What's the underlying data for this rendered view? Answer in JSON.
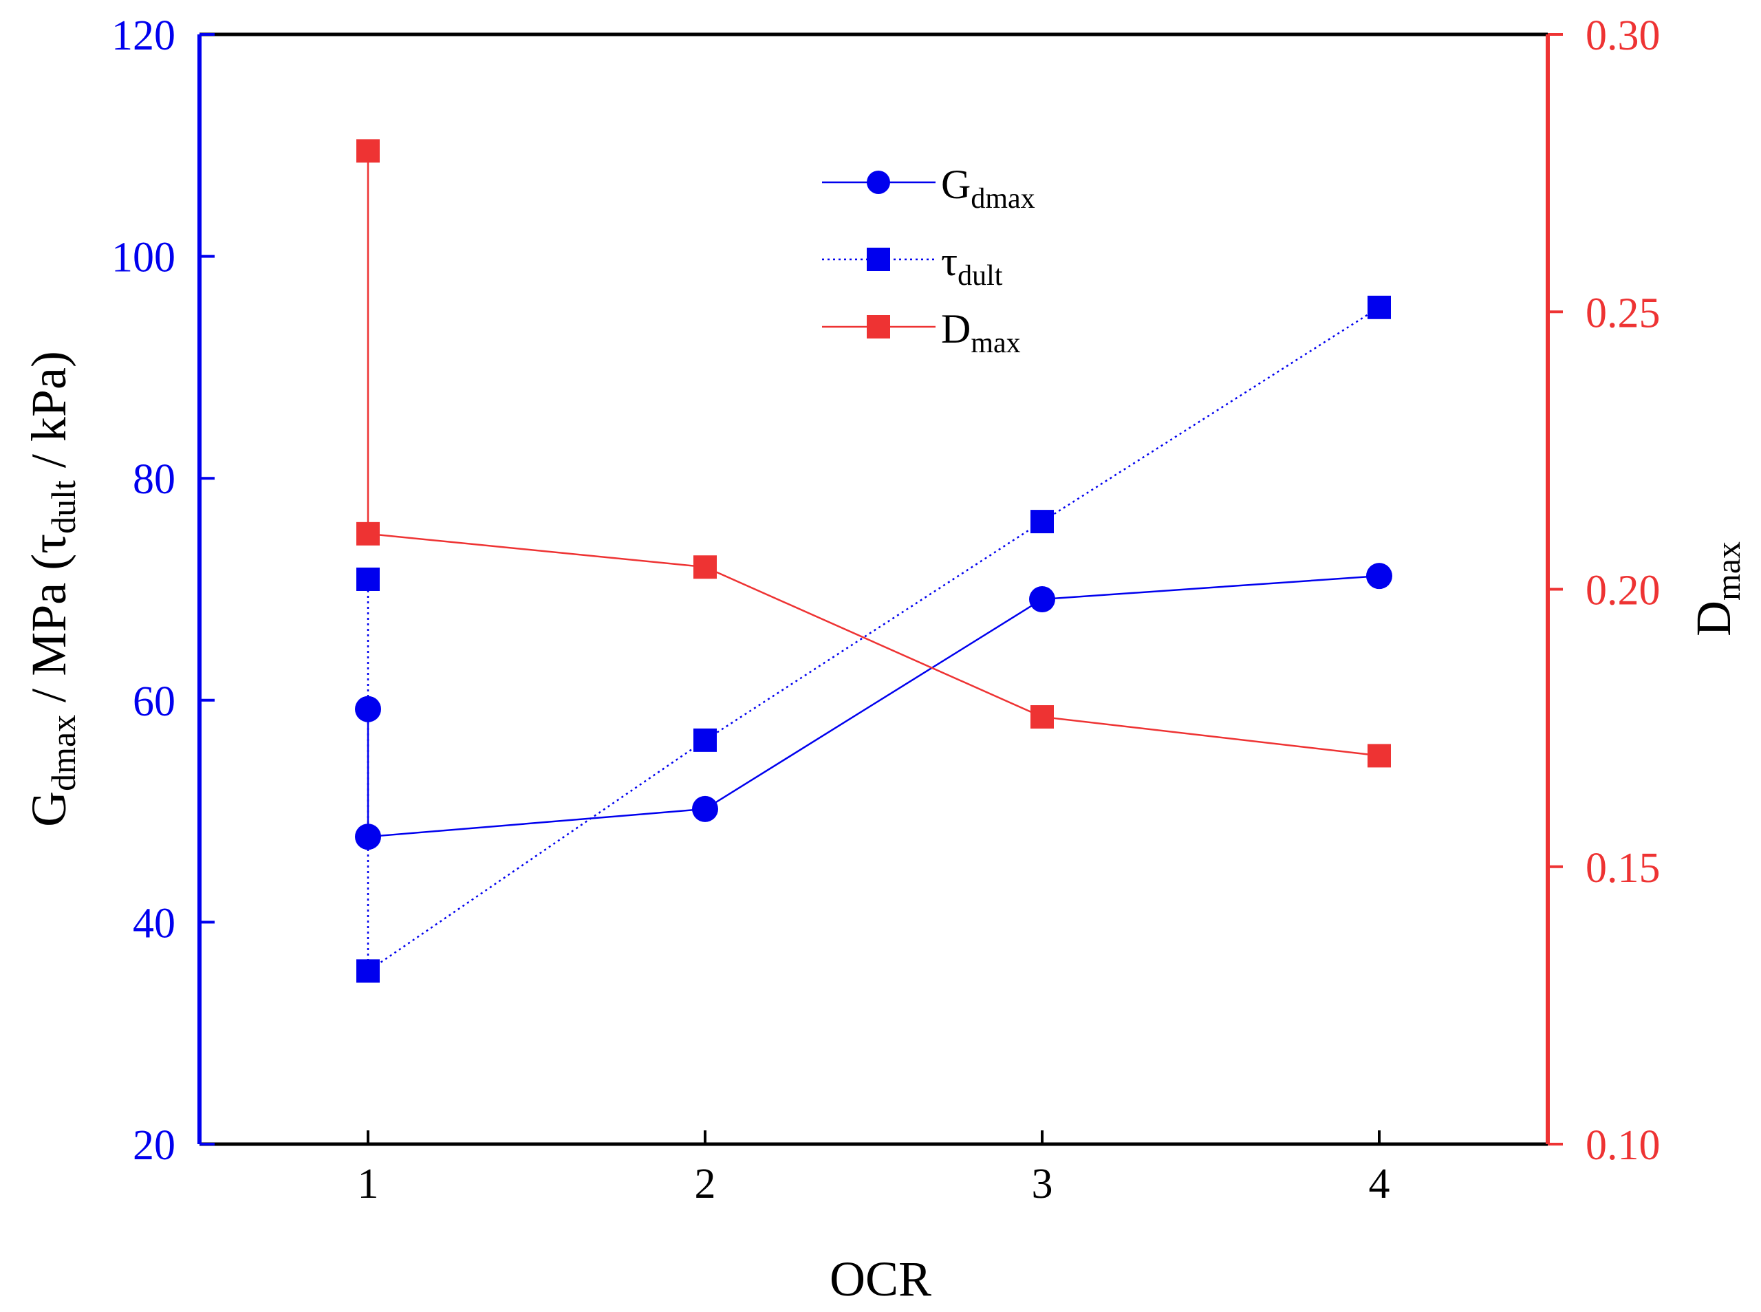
{
  "chart_data": {
    "type": "line",
    "xlabel": "OCR",
    "x_ticks": [
      "1",
      "2",
      "3",
      "4"
    ],
    "xlim": [
      0.5,
      4.5
    ],
    "left_axis": {
      "label_parts": {
        "G": "G",
        "dmax_sub": "dmax",
        "mid": " / MPa (",
        "tau": "τ",
        "dult_sub": "dult",
        "end": " / kPa)"
      },
      "ylim": [
        20,
        120
      ],
      "ticks": [
        "20",
        "40",
        "60",
        "80",
        "100",
        "120"
      ],
      "color": "#0000ee"
    },
    "right_axis": {
      "label_parts": {
        "D": "D",
        "max_sub": "max"
      },
      "ylim": [
        0.1,
        0.3
      ],
      "ticks": [
        "0.10",
        "0.15",
        "0.20",
        "0.25",
        "0.30"
      ],
      "color": "#ee3333"
    },
    "series": [
      {
        "name": "G_dmax",
        "axis": "left",
        "marker": "circle",
        "line": "solid",
        "color": "#0000ee",
        "x": [
          1,
          1,
          2,
          3,
          4
        ],
        "y": [
          59.2,
          47.7,
          50.2,
          69.1,
          71.2
        ]
      },
      {
        "name": "τ_dult",
        "axis": "left",
        "marker": "square",
        "line": "dotted",
        "color": "#0000ee",
        "x": [
          1,
          1,
          2,
          3,
          4
        ],
        "y": [
          70.9,
          35.6,
          56.4,
          76.1,
          95.4
        ]
      },
      {
        "name": "D_max",
        "axis": "right",
        "marker": "square",
        "line": "solid",
        "color": "#ee3333",
        "x": [
          1,
          1,
          2,
          3,
          4
        ],
        "y": [
          0.279,
          0.21,
          0.204,
          0.177,
          0.17
        ]
      }
    ],
    "legend": {
      "position": "top-center",
      "entries": [
        {
          "main": "G",
          "sub": "dmax"
        },
        {
          "main": "τ",
          "sub": "dult"
        },
        {
          "main": "D",
          "sub": "max"
        }
      ]
    }
  }
}
